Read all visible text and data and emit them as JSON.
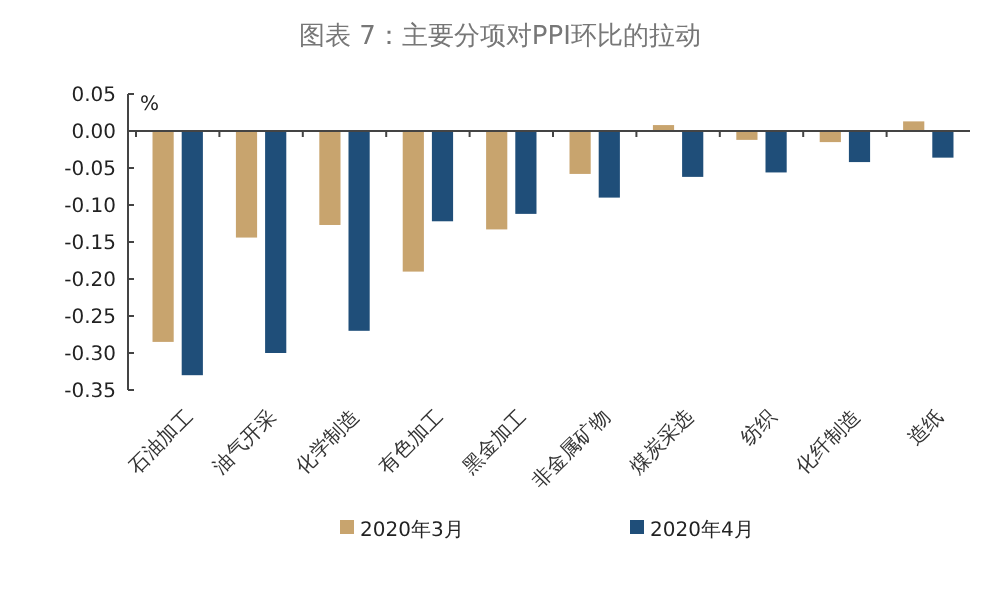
{
  "chart_data": {
    "type": "bar",
    "title": "图表 7：主要分项对PPI环比的拉动",
    "ylabel": "%",
    "categories": [
      "石油加工",
      "油气开采",
      "化学制造",
      "有色加工",
      "黑金加工",
      "非金属矿物",
      "煤炭采选",
      "纺织",
      "化纤制造",
      "造纸"
    ],
    "series": [
      {
        "name": "2020年3月",
        "color": "#c8a46e",
        "values": [
          -0.285,
          -0.144,
          -0.127,
          -0.19,
          -0.133,
          -0.058,
          0.008,
          -0.012,
          -0.015,
          0.013
        ]
      },
      {
        "name": "2020年4月",
        "color": "#1f4e79",
        "values": [
          -0.33,
          -0.3,
          -0.27,
          -0.122,
          -0.112,
          -0.09,
          -0.062,
          -0.056,
          -0.042,
          -0.036
        ]
      }
    ],
    "ylim": [
      -0.35,
      0.05
    ],
    "yticks": [
      {
        "value": 0.05,
        "label": "0.05"
      },
      {
        "value": 0,
        "label": "0.00"
      },
      {
        "value": -0.05,
        "label": "-0.05"
      },
      {
        "value": -0.1,
        "label": "-0.10"
      },
      {
        "value": -0.15,
        "label": "-0.15"
      },
      {
        "value": -0.2,
        "label": "-0.20"
      },
      {
        "value": -0.25,
        "label": "-0.25"
      },
      {
        "value": -0.3,
        "label": "-0.30"
      },
      {
        "value": -0.35,
        "label": "-0.35"
      }
    ],
    "legend": "bottom"
  }
}
